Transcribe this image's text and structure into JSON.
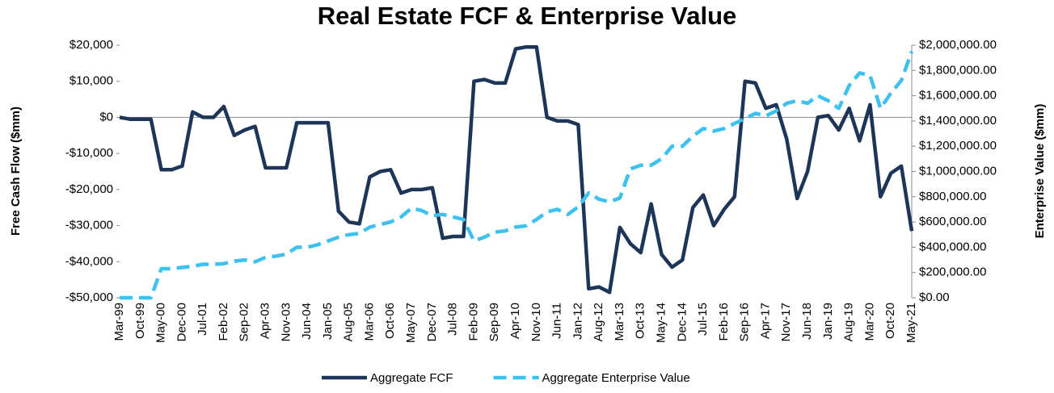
{
  "chart_data": {
    "type": "line",
    "title": "Real Estate FCF & Enterprise Value",
    "y_label": "Free Cash Flow ($mm)",
    "y2_label": "Enterprise Value ($mm)",
    "categories": [
      "Mar-99",
      null,
      "Oct-99",
      null,
      "May-00",
      null,
      "Dec-00",
      null,
      "Jul-01",
      null,
      "Feb-02",
      null,
      "Sep-02",
      null,
      "Apr-03",
      null,
      "Nov-03",
      null,
      "Jun-04",
      null,
      "Jan-05",
      null,
      "Aug-05",
      null,
      "Mar-06",
      null,
      "Oct-06",
      null,
      "May-07",
      null,
      "Dec-07",
      null,
      "Jul-08",
      null,
      "Feb-09",
      null,
      "Sep-09",
      null,
      "Apr-10",
      null,
      "Nov-10",
      null,
      "Jun-11",
      null,
      "Jan-12",
      null,
      "Aug-12",
      null,
      "Mar-13",
      null,
      "Oct-13",
      null,
      "May-14",
      null,
      "Dec-14",
      null,
      "Jul-15",
      null,
      "Feb-16",
      null,
      "Sep-16",
      null,
      "Apr-17",
      null,
      "Nov-17",
      null,
      "Jun-18",
      null,
      "Jan-19",
      null,
      "Aug-19",
      null,
      "Mar-20",
      null,
      "Oct-20",
      null,
      "May-21"
    ],
    "series": [
      {
        "name": "Aggregate FCF",
        "color": "#1d3557",
        "dash": false,
        "values": [
          0,
          -500,
          -500,
          -500,
          -14500,
          -14500,
          -13500,
          1500,
          0,
          0,
          3000,
          -5000,
          -3500,
          -2500,
          -14000,
          -14000,
          -14000,
          -1500,
          -1500,
          -1500,
          -1500,
          -26000,
          -29000,
          -29500,
          -16500,
          -15000,
          -14500,
          -21000,
          -20000,
          -20000,
          -19500,
          -33500,
          -33000,
          -33000,
          10000,
          10500,
          9500,
          9500,
          19000,
          19500,
          19500,
          0,
          -1000,
          -1000,
          -2000,
          -47500,
          -47000,
          -48500,
          -30500,
          -35000,
          -37500,
          -24000,
          -38000,
          -41500,
          -39500,
          -25000,
          -21500,
          -30000,
          -25500,
          -22000,
          10000,
          9500,
          2500,
          3500,
          -6000,
          -22500,
          -15000,
          0,
          500,
          -3500,
          2500,
          -6500,
          3500,
          -22000,
          -15500,
          -13500,
          -31500
        ]
      },
      {
        "name": "Aggregate Enterprise Value",
        "color": "#3ec1ef",
        "dash": true,
        "axis": "y2",
        "values": [
          0,
          0,
          0,
          0,
          230000,
          230000,
          240000,
          250000,
          265000,
          265000,
          270000,
          290000,
          300000,
          285000,
          320000,
          330000,
          345000,
          400000,
          400000,
          420000,
          450000,
          480000,
          500000,
          510000,
          560000,
          580000,
          600000,
          640000,
          710000,
          690000,
          650000,
          660000,
          640000,
          620000,
          450000,
          480000,
          520000,
          530000,
          560000,
          570000,
          620000,
          680000,
          700000,
          660000,
          720000,
          830000,
          780000,
          760000,
          790000,
          1020000,
          1050000,
          1050000,
          1100000,
          1200000,
          1200000,
          1280000,
          1340000,
          1320000,
          1340000,
          1380000,
          1420000,
          1460000,
          1440000,
          1480000,
          1540000,
          1560000,
          1540000,
          1600000,
          1560000,
          1500000,
          1680000,
          1780000,
          1760000,
          1500000,
          1620000,
          1720000,
          1950000
        ]
      }
    ],
    "ylim": [
      -50000,
      20000
    ],
    "yticks": [
      {
        "value": -50000,
        "label": "-$50,000"
      },
      {
        "value": -40000,
        "label": "-$40,000"
      },
      {
        "value": -30000,
        "label": "-$30,000"
      },
      {
        "value": -20000,
        "label": "-$20,000"
      },
      {
        "value": -10000,
        "label": "-$10,000"
      },
      {
        "value": 0,
        "label": "$0"
      },
      {
        "value": 10000,
        "label": "$10,000"
      },
      {
        "value": 20000,
        "label": "$20,000"
      }
    ],
    "y2lim": [
      0,
      2000000
    ],
    "y2ticks": [
      {
        "value": 0,
        "label": "$0.00"
      },
      {
        "value": 200000,
        "label": "$200,000.00"
      },
      {
        "value": 400000,
        "label": "$400,000.00"
      },
      {
        "value": 600000,
        "label": "$600,000.00"
      },
      {
        "value": 800000,
        "label": "$800,000.00"
      },
      {
        "value": 1000000,
        "label": "$1,000,000.00"
      },
      {
        "value": 1200000,
        "label": "$1,200,000.00"
      },
      {
        "value": 1400000,
        "label": "$1,400,000.00"
      },
      {
        "value": 1600000,
        "label": "$1,600,000.00"
      },
      {
        "value": 1800000,
        "label": "$1,800,000.00"
      },
      {
        "value": 2000000,
        "label": "$2,000,000.00"
      }
    ],
    "grid": false,
    "legend": "bottom"
  }
}
